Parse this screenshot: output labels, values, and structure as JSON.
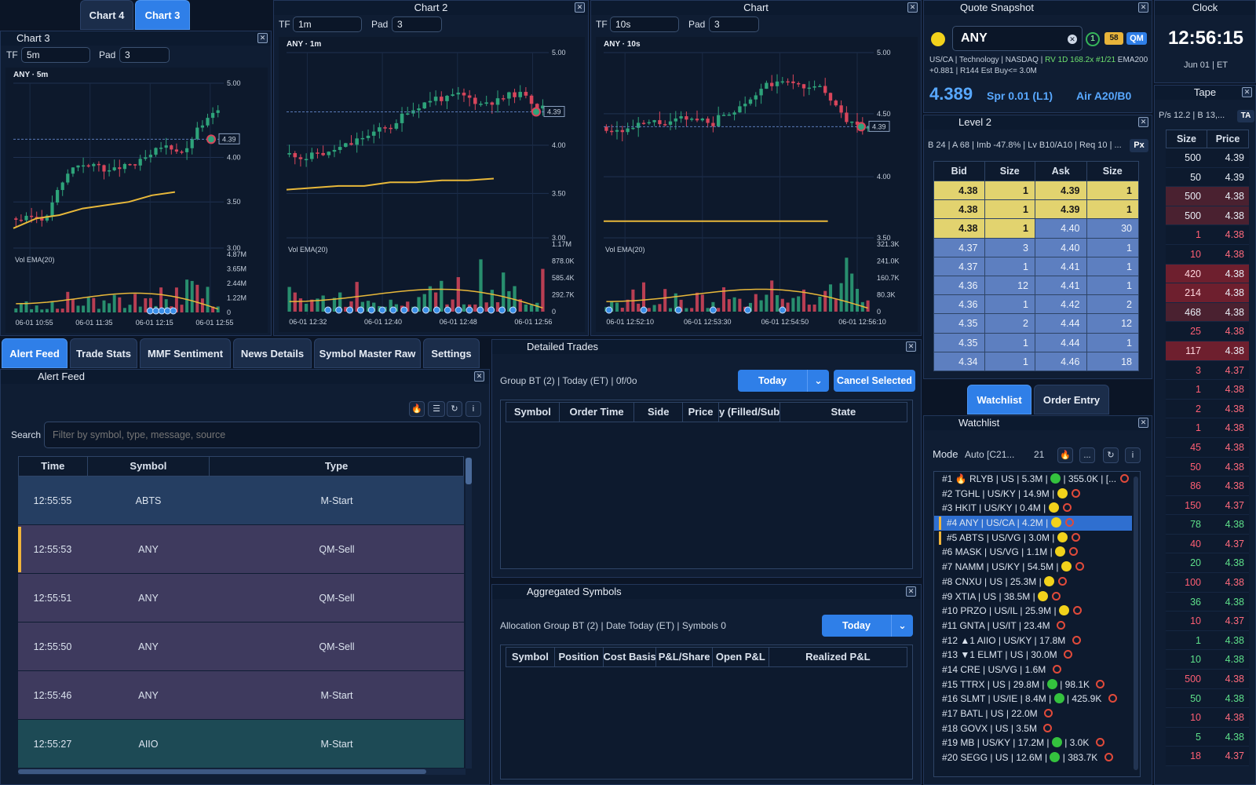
{
  "tabs_top": [
    "Chart 4",
    "Chart 3"
  ],
  "chart3": {
    "title": "Chart 3",
    "tf_label": "TF",
    "tf": "5m",
    "pad_label": "Pad",
    "pad": "3",
    "symbol": "ANY · 5m",
    "price_tag": "4.39",
    "yticks": [
      "5.00",
      "4.00",
      "3.50",
      "3.00"
    ],
    "vol_label": "Vol EMA(20)",
    "vol_ticks": [
      "4.87M",
      "3.65M",
      "2.44M",
      "1.22M",
      "0"
    ],
    "xticks": [
      "06-01 10:55",
      "06-01 11:35",
      "06-01 12:15",
      "06-01 12:55"
    ]
  },
  "chart2": {
    "title": "Chart 2",
    "tf_label": "TF",
    "tf": "1m",
    "pad_label": "Pad",
    "pad": "3",
    "symbol": "ANY · 1m",
    "price_tag": "4.39",
    "yticks": [
      "5.00",
      "4.00",
      "3.50",
      "3.00"
    ],
    "vol_label": "Vol EMA(20)",
    "vol_ticks": [
      "1.17M",
      "878.0K",
      "585.4K",
      "292.7K",
      "0"
    ],
    "xticks": [
      "06-01 12:32",
      "06-01 12:40",
      "06-01 12:48",
      "06-01 12:56"
    ]
  },
  "chart1": {
    "title": "Chart",
    "tf_label": "TF",
    "tf": "10s",
    "pad_label": "Pad",
    "pad": "3",
    "symbol": "ANY · 10s",
    "price_tag": "4.39",
    "yticks": [
      "5.00",
      "4.50",
      "4.00",
      "3.50"
    ],
    "vol_label": "Vol EMA(20)",
    "vol_ticks": [
      "321.3K",
      "241.0K",
      "160.7K",
      "80.3K",
      "0"
    ],
    "xticks": [
      "06-01 12:52:10",
      "06-01 12:53:30",
      "06-01 12:54:50",
      "06-01 12:56:10"
    ]
  },
  "quote": {
    "title": "Quote Snapshot",
    "symbol": "ANY",
    "badge1": "1",
    "badge2": "58",
    "badge3": "QM",
    "info1": "US/CA | Technology | NASDAQ | ",
    "info1_green": "RV 1D 168.2x #1/21",
    "info1_end": " EMA200",
    "info2": "+0.881 | R144 Est Buy<= 3.0M",
    "price": "4.389",
    "spread": "Spr 0.01 (L1)",
    "air": "Air A20/B0"
  },
  "clock": {
    "title": "Clock",
    "time": "12:56:15",
    "date": "Jun 01 | ET"
  },
  "tape": {
    "title": "Tape",
    "summary": "P/s 12.2 | B 13,...",
    "ta": "TA",
    "headers": [
      "Size",
      "Price"
    ],
    "rows": [
      [
        "500",
        "4.39",
        "n"
      ],
      [
        "50",
        "4.39",
        "n"
      ],
      [
        "500",
        "4.38",
        "m"
      ],
      [
        "500",
        "4.38",
        "m"
      ],
      [
        "1",
        "4.38",
        "r"
      ],
      [
        "10",
        "4.38",
        "r"
      ],
      [
        "420",
        "4.38",
        "R"
      ],
      [
        "214",
        "4.38",
        "R"
      ],
      [
        "468",
        "4.38",
        "m"
      ],
      [
        "25",
        "4.38",
        "r"
      ],
      [
        "117",
        "4.38",
        "R"
      ],
      [
        "3",
        "4.37",
        "r"
      ],
      [
        "1",
        "4.38",
        "r"
      ],
      [
        "2",
        "4.38",
        "r"
      ],
      [
        "1",
        "4.38",
        "r"
      ],
      [
        "45",
        "4.38",
        "r"
      ],
      [
        "50",
        "4.38",
        "r"
      ],
      [
        "86",
        "4.38",
        "r"
      ],
      [
        "150",
        "4.37",
        "r"
      ],
      [
        "78",
        "4.38",
        "g"
      ],
      [
        "40",
        "4.37",
        "r"
      ],
      [
        "20",
        "4.38",
        "g"
      ],
      [
        "100",
        "4.38",
        "r"
      ],
      [
        "36",
        "4.38",
        "g"
      ],
      [
        "10",
        "4.37",
        "r"
      ],
      [
        "1",
        "4.38",
        "g"
      ],
      [
        "10",
        "4.38",
        "g"
      ],
      [
        "500",
        "4.38",
        "r"
      ],
      [
        "50",
        "4.38",
        "g"
      ],
      [
        "10",
        "4.38",
        "r"
      ],
      [
        "5",
        "4.38",
        "g"
      ],
      [
        "18",
        "4.37",
        "r"
      ]
    ]
  },
  "level2": {
    "title": "Level 2",
    "summary": "B 24 | A 68 | Imb -47.8% | Lv B10/A10 | Req 10 | ...",
    "px": "Px",
    "headers": [
      "Bid",
      "Size",
      "Ask",
      "Size"
    ],
    "rows": [
      [
        "4.38",
        "1",
        "4.39",
        "1",
        "y",
        "y"
      ],
      [
        "4.38",
        "1",
        "4.39",
        "1",
        "y",
        "y"
      ],
      [
        "4.38",
        "1",
        "4.40",
        "30",
        "y",
        "b"
      ],
      [
        "4.37",
        "3",
        "4.40",
        "1",
        "b",
        "b"
      ],
      [
        "4.37",
        "1",
        "4.41",
        "1",
        "b",
        "b"
      ],
      [
        "4.36",
        "12",
        "4.41",
        "1",
        "b",
        "b"
      ],
      [
        "4.36",
        "1",
        "4.42",
        "2",
        "b",
        "b"
      ],
      [
        "4.35",
        "2",
        "4.44",
        "12",
        "b",
        "b"
      ],
      [
        "4.35",
        "1",
        "4.44",
        "1",
        "b",
        "b"
      ],
      [
        "4.34",
        "1",
        "4.46",
        "18",
        "b",
        "b"
      ]
    ]
  },
  "mid_tabs": [
    "Watchlist",
    "Order Entry"
  ],
  "watchlist": {
    "title": "Watchlist",
    "mode_label": "Mode",
    "mode": "Auto [C21...",
    "count": "21",
    "more": "...",
    "items": [
      [
        "#1 🔥 RLYB | US | 5.3M | ",
        "g",
        " | 355.0K | [..."
      ],
      [
        "#2 TGHL | US/KY | 14.9M | ",
        "y",
        ""
      ],
      [
        "#3 HKIT | US/KY | 0.4M | ",
        "y",
        ""
      ],
      [
        "#4 ANY | US/CA | 4.2M | ",
        "y",
        ""
      ],
      [
        "#5 ABTS | US/VG | 3.0M | ",
        "y",
        ""
      ],
      [
        "#6 MASK | US/VG | 1.1M | ",
        "y",
        ""
      ],
      [
        "#7 NAMM | US/KY | 54.5M | ",
        "y",
        ""
      ],
      [
        "#8 CNXU | US | 25.3M | ",
        "y",
        ""
      ],
      [
        "#9 XTIA | US | 38.5M | ",
        "y",
        ""
      ],
      [
        "#10 PRZO | US/IL | 25.9M | ",
        "y",
        ""
      ],
      [
        "#11 GNTA | US/IT | 23.4M ",
        "",
        ""
      ],
      [
        "#12 ▲1 AIIO | US/KY | 17.8M ",
        "",
        ""
      ],
      [
        "#13 ▼1 ELMT | US | 30.0M ",
        "",
        ""
      ],
      [
        "#14 CRE | US/VG | 1.6M ",
        "",
        ""
      ],
      [
        "#15 TTRX | US | 29.8M | ",
        "g",
        " | 98.1K "
      ],
      [
        "#16 SLMT | US/IE | 8.4M | ",
        "g",
        " | 425.9K "
      ],
      [
        "#17 BATL | US | 22.0M ",
        "",
        ""
      ],
      [
        "#18 GOVX | US | 3.5M ",
        "",
        ""
      ],
      [
        "#19 MB | US/KY | 17.2M | ",
        "g",
        " | 3.0K "
      ],
      [
        "#20 SEGG | US | 12.6M | ",
        "g",
        " | 383.7K "
      ]
    ]
  },
  "bottom_tabs": [
    "Alert Feed",
    "Trade Stats",
    "MMF Sentiment",
    "News Details",
    "Symbol Master Raw",
    "Settings"
  ],
  "alert": {
    "title": "Alert Feed",
    "search_label": "Search",
    "search_placeholder": "Filter by symbol, type, message, source",
    "headers": [
      "Time",
      "Symbol",
      "Type"
    ],
    "rows": [
      [
        "12:55:55",
        "ABTS",
        "M-Start",
        "#253e62",
        false
      ],
      [
        "12:55:53",
        "ANY",
        "QM-Sell",
        "#3e3a5e",
        true
      ],
      [
        "12:55:51",
        "ANY",
        "QM-Sell",
        "#3e3a5e",
        false
      ],
      [
        "12:55:50",
        "ANY",
        "QM-Sell",
        "#3e3a5e",
        false
      ],
      [
        "12:55:46",
        "ANY",
        "M-Start",
        "#3e3a5e",
        false
      ],
      [
        "12:55:27",
        "AIIO",
        "M-Start",
        "#1d4a55",
        false
      ]
    ]
  },
  "trades": {
    "title": "Detailed Trades",
    "info": "Group BT (2) | Today (ET) | 0f/0o",
    "today": "Today",
    "cancel": "Cancel Selected",
    "headers": [
      "Symbol",
      "Order Time",
      "Side",
      "Price",
      "y (Filled/Sub",
      "State"
    ]
  },
  "agg": {
    "title": "Aggregated Symbols",
    "info": "Allocation Group BT (2) | Date Today (ET) | Symbols 0",
    "today": "Today",
    "headers": [
      "Symbol",
      "Position",
      "Cost Basis",
      "P&L/Share",
      "Open P&L",
      "Realized P&L"
    ]
  },
  "colors": {
    "up": "#2ea37a",
    "down": "#d7455b",
    "ema": "#e8b83a",
    "accent": "#2f7fe8"
  }
}
